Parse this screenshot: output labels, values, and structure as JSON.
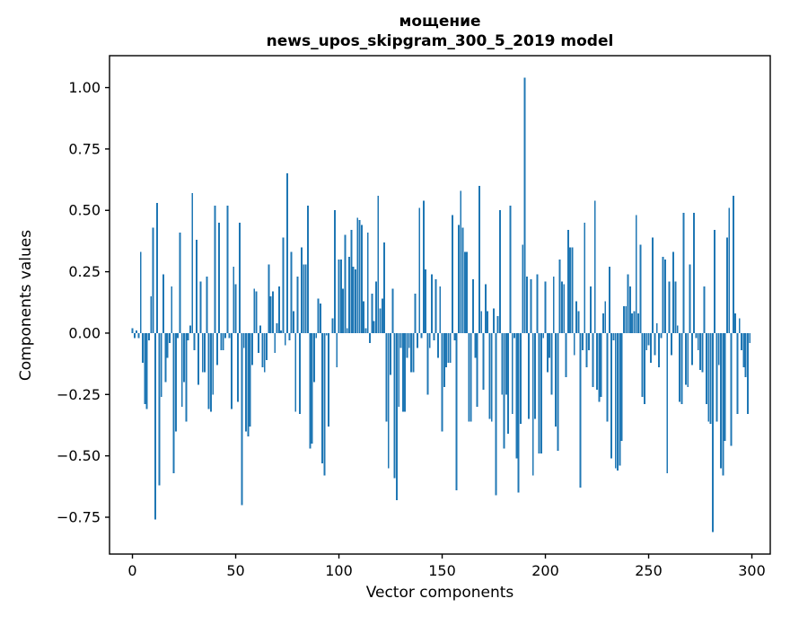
{
  "figure": {
    "background": "#ffffff",
    "spine_color": "#000000",
    "accent_color": "#1f77b4"
  },
  "title": {
    "line1": "мощение",
    "line2": "news_upos_skipgram_300_5_2019 model"
  },
  "axes": {
    "xlabel": "Vector components",
    "ylabel": "Components values"
  },
  "chart_data": {
    "type": "bar",
    "title": "мощение\nnews_upos_skipgram_300_5_2019 model",
    "xlabel": "Vector components",
    "ylabel": "Components values",
    "bar_color": "#1f77b4",
    "grid": false,
    "legend": null,
    "n_components": 300,
    "x_ticks": [
      0,
      50,
      100,
      150,
      200,
      250,
      300
    ],
    "y_ticks": [
      1.0,
      0.75,
      0.5,
      0.25,
      0.0,
      -0.25,
      -0.5,
      -0.75
    ],
    "y_tick_labels": [
      "1.00",
      "0.75",
      "0.50",
      "0.25",
      "0.00",
      "−0.25",
      "−0.50",
      "−0.75"
    ],
    "xlim": [
      -11.1,
      308.9
    ],
    "ylim": [
      -0.9,
      1.13
    ],
    "bar_rel_width": 0.8,
    "values": [
      0.02,
      -0.02,
      0.01,
      -0.02,
      0.33,
      -0.12,
      -0.29,
      -0.31,
      -0.03,
      0.15,
      0.43,
      -0.76,
      0.53,
      -0.62,
      -0.26,
      0.24,
      -0.2,
      -0.1,
      -0.04,
      0.19,
      -0.57,
      -0.4,
      -0.02,
      0.41,
      -0.3,
      -0.2,
      -0.36,
      -0.03,
      0.03,
      0.57,
      -0.07,
      0.38,
      -0.21,
      0.21,
      -0.16,
      -0.16,
      0.23,
      -0.31,
      -0.32,
      -0.25,
      0.52,
      -0.13,
      0.45,
      -0.07,
      -0.07,
      -0.02,
      0.52,
      -0.02,
      -0.31,
      0.27,
      0.2,
      -0.28,
      0.45,
      -0.7,
      -0.06,
      -0.4,
      -0.42,
      -0.38,
      -0.13,
      0.18,
      0.17,
      -0.08,
      0.03,
      -0.14,
      -0.16,
      -0.11,
      0.28,
      0.15,
      0.17,
      -0.08,
      0.04,
      0.19,
      0.01,
      0.39,
      -0.05,
      0.65,
      -0.03,
      0.33,
      0.09,
      -0.32,
      0.23,
      -0.33,
      0.35,
      0.28,
      0.28,
      0.52,
      -0.47,
      -0.45,
      -0.2,
      -0.02,
      0.14,
      0.12,
      -0.53,
      -0.58,
      -0.01,
      -0.38,
      0.0,
      0.06,
      0.5,
      -0.14,
      0.3,
      0.3,
      0.18,
      0.4,
      0.02,
      0.31,
      0.42,
      0.27,
      0.26,
      0.47,
      0.46,
      0.44,
      0.13,
      0.02,
      0.41,
      -0.04,
      0.16,
      0.05,
      0.21,
      0.56,
      0.1,
      0.14,
      0.37,
      -0.36,
      -0.55,
      -0.17,
      0.18,
      -0.59,
      -0.68,
      -0.3,
      -0.06,
      -0.32,
      -0.32,
      -0.1,
      -0.06,
      -0.16,
      -0.16,
      0.16,
      -0.06,
      0.51,
      -0.02,
      0.54,
      0.26,
      -0.25,
      -0.06,
      0.24,
      -0.03,
      0.22,
      -0.1,
      0.19,
      -0.4,
      -0.22,
      -0.14,
      -0.12,
      -0.12,
      0.48,
      -0.03,
      -0.64,
      0.44,
      0.58,
      0.43,
      0.33,
      0.33,
      -0.36,
      -0.36,
      0.22,
      -0.1,
      -0.3,
      0.6,
      0.09,
      -0.23,
      0.2,
      0.09,
      -0.35,
      -0.36,
      0.1,
      -0.66,
      0.07,
      0.5,
      -0.25,
      -0.47,
      -0.25,
      -0.41,
      0.52,
      -0.33,
      -0.02,
      -0.51,
      -0.65,
      -0.37,
      0.36,
      1.04,
      0.23,
      -0.35,
      0.22,
      -0.58,
      -0.35,
      0.24,
      -0.49,
      -0.49,
      -0.02,
      0.21,
      -0.16,
      -0.1,
      -0.25,
      0.23,
      -0.38,
      -0.48,
      0.3,
      0.21,
      0.2,
      -0.18,
      0.42,
      0.35,
      0.35,
      -0.09,
      0.13,
      0.09,
      -0.63,
      -0.07,
      0.45,
      -0.14,
      -0.07,
      0.19,
      -0.22,
      0.54,
      -0.23,
      -0.28,
      -0.26,
      0.08,
      0.13,
      -0.36,
      0.27,
      -0.51,
      -0.03,
      -0.55,
      -0.56,
      -0.54,
      -0.44,
      0.11,
      0.11,
      0.24,
      0.19,
      0.08,
      0.09,
      0.48,
      0.08,
      0.36,
      -0.26,
      -0.29,
      -0.07,
      -0.05,
      -0.12,
      0.39,
      -0.09,
      0.04,
      -0.14,
      -0.02,
      0.31,
      0.3,
      -0.57,
      0.21,
      -0.09,
      0.33,
      0.21,
      0.03,
      -0.28,
      -0.29,
      0.49,
      -0.21,
      -0.22,
      0.28,
      -0.13,
      0.49,
      -0.02,
      -0.07,
      -0.15,
      -0.16,
      0.19,
      -0.29,
      -0.36,
      -0.37,
      -0.81,
      0.42,
      -0.36,
      -0.13,
      -0.55,
      -0.58,
      -0.44,
      0.39,
      0.51,
      -0.46,
      0.56,
      0.08,
      -0.33,
      0.06,
      -0.07,
      -0.14,
      -0.18,
      -0.33,
      -0.04
    ]
  }
}
